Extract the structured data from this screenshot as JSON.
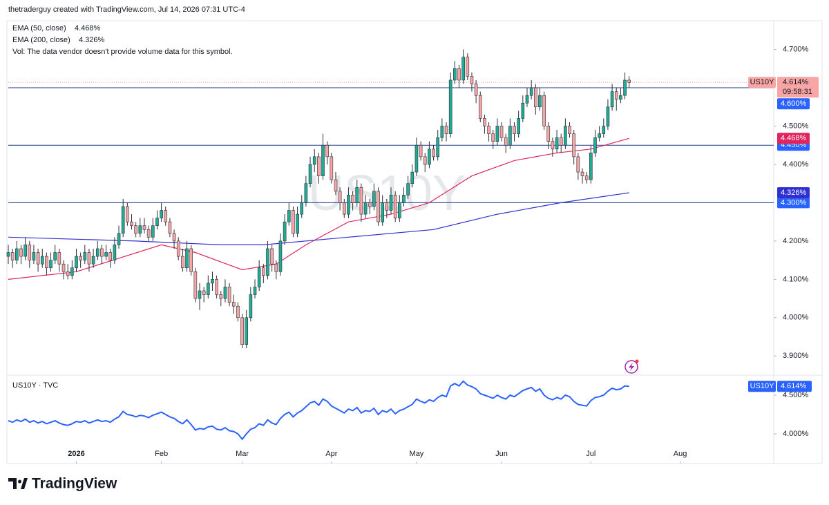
{
  "chart_data": {
    "type": "candlestick",
    "header": "thetraderguy created with TradingView.com, Jul 14, 2026 07:31 UTC-4",
    "watermark": "US10Y",
    "symbol": "US10Y",
    "volume_note": "Vol: The data vendor doesn't provide volume data for this symbol.",
    "up_color": "#22ab94",
    "down_color": "#f7a5a5",
    "wick_color": "#2a2e39",
    "candles": [
      [
        4.16,
        4.19,
        4.14,
        4.17
      ],
      [
        4.17,
        4.18,
        4.13,
        4.15
      ],
      [
        4.15,
        4.2,
        4.14,
        4.18
      ],
      [
        4.18,
        4.19,
        4.14,
        4.16
      ],
      [
        4.16,
        4.21,
        4.15,
        4.19
      ],
      [
        4.19,
        4.2,
        4.13,
        4.15
      ],
      [
        4.15,
        4.19,
        4.14,
        4.17
      ],
      [
        4.17,
        4.18,
        4.12,
        4.14
      ],
      [
        4.14,
        4.18,
        4.13,
        4.16
      ],
      [
        4.16,
        4.17,
        4.11,
        4.13
      ],
      [
        4.13,
        4.17,
        4.12,
        4.15
      ],
      [
        4.15,
        4.19,
        4.14,
        4.17
      ],
      [
        4.17,
        4.18,
        4.12,
        4.14
      ],
      [
        4.14,
        4.15,
        4.1,
        4.12
      ],
      [
        4.12,
        4.14,
        4.1,
        4.11
      ],
      [
        4.11,
        4.15,
        4.1,
        4.13
      ],
      [
        4.13,
        4.18,
        4.12,
        4.16
      ],
      [
        4.16,
        4.17,
        4.13,
        4.15
      ],
      [
        4.15,
        4.19,
        4.14,
        4.17
      ],
      [
        4.17,
        4.18,
        4.12,
        4.14
      ],
      [
        4.14,
        4.18,
        4.13,
        4.16
      ],
      [
        4.16,
        4.2,
        4.15,
        4.18
      ],
      [
        4.18,
        4.19,
        4.14,
        4.16
      ],
      [
        4.16,
        4.19,
        4.15,
        4.17
      ],
      [
        4.17,
        4.18,
        4.13,
        4.15
      ],
      [
        4.15,
        4.21,
        4.14,
        4.19
      ],
      [
        4.19,
        4.24,
        4.18,
        4.22
      ],
      [
        4.22,
        4.31,
        4.21,
        4.29
      ],
      [
        4.29,
        4.3,
        4.24,
        4.25
      ],
      [
        4.25,
        4.27,
        4.23,
        4.24
      ],
      [
        4.24,
        4.25,
        4.21,
        4.22
      ],
      [
        4.22,
        4.26,
        4.21,
        4.24
      ],
      [
        4.24,
        4.26,
        4.22,
        4.23
      ],
      [
        4.23,
        4.24,
        4.2,
        4.21
      ],
      [
        4.21,
        4.26,
        4.2,
        4.24
      ],
      [
        4.24,
        4.28,
        4.23,
        4.26
      ],
      [
        4.26,
        4.3,
        4.25,
        4.28
      ],
      [
        4.28,
        4.29,
        4.24,
        4.25
      ],
      [
        4.25,
        4.26,
        4.21,
        4.22
      ],
      [
        4.22,
        4.23,
        4.18,
        4.2
      ],
      [
        4.2,
        4.21,
        4.15,
        4.16
      ],
      [
        4.16,
        4.18,
        4.12,
        4.13
      ],
      [
        4.13,
        4.2,
        4.12,
        4.18
      ],
      [
        4.18,
        4.19,
        4.11,
        4.12
      ],
      [
        4.12,
        4.13,
        4.04,
        4.05
      ],
      [
        4.05,
        4.09,
        4.02,
        4.07
      ],
      [
        4.07,
        4.08,
        4.04,
        4.06
      ],
      [
        4.06,
        4.11,
        4.05,
        4.09
      ],
      [
        4.09,
        4.12,
        4.07,
        4.1
      ],
      [
        4.1,
        4.11,
        4.05,
        4.06
      ],
      [
        4.06,
        4.07,
        4.03,
        4.05
      ],
      [
        4.05,
        4.1,
        4.04,
        4.08
      ],
      [
        4.08,
        4.09,
        4.03,
        4.04
      ],
      [
        4.04,
        4.06,
        4.01,
        4.03
      ],
      [
        4.03,
        4.04,
        3.99,
        4.0
      ],
      [
        4.0,
        4.01,
        3.92,
        3.93
      ],
      [
        3.93,
        4.02,
        3.92,
        4.0
      ],
      [
        4.0,
        4.08,
        3.99,
        4.06
      ],
      [
        4.06,
        4.1,
        4.05,
        4.08
      ],
      [
        4.08,
        4.15,
        4.07,
        4.13
      ],
      [
        4.13,
        4.14,
        4.09,
        4.11
      ],
      [
        4.11,
        4.2,
        4.1,
        4.18
      ],
      [
        4.18,
        4.19,
        4.12,
        4.14
      ],
      [
        4.14,
        4.15,
        4.1,
        4.12
      ],
      [
        4.12,
        4.22,
        4.11,
        4.2
      ],
      [
        4.2,
        4.27,
        4.19,
        4.25
      ],
      [
        4.25,
        4.3,
        4.24,
        4.28
      ],
      [
        4.28,
        4.29,
        4.21,
        4.22
      ],
      [
        4.22,
        4.29,
        4.21,
        4.27
      ],
      [
        4.27,
        4.32,
        4.26,
        4.3
      ],
      [
        4.3,
        4.37,
        4.29,
        4.35
      ],
      [
        4.35,
        4.42,
        4.34,
        4.4
      ],
      [
        4.4,
        4.44,
        4.38,
        4.42
      ],
      [
        4.42,
        4.43,
        4.35,
        4.37
      ],
      [
        4.37,
        4.48,
        4.36,
        4.45
      ],
      [
        4.45,
        4.46,
        4.4,
        4.42
      ],
      [
        4.42,
        4.43,
        4.35,
        4.36
      ],
      [
        4.36,
        4.38,
        4.32,
        4.33
      ],
      [
        4.33,
        4.34,
        4.28,
        4.3
      ],
      [
        4.3,
        4.31,
        4.26,
        4.27
      ],
      [
        4.27,
        4.34,
        4.26,
        4.32
      ],
      [
        4.32,
        4.33,
        4.28,
        4.3
      ],
      [
        4.3,
        4.36,
        4.29,
        4.34
      ],
      [
        4.34,
        4.35,
        4.25,
        4.27
      ],
      [
        4.27,
        4.32,
        4.26,
        4.3
      ],
      [
        4.3,
        4.31,
        4.27,
        4.29
      ],
      [
        4.29,
        4.35,
        4.28,
        4.33
      ],
      [
        4.33,
        4.34,
        4.24,
        4.25
      ],
      [
        4.25,
        4.32,
        4.24,
        4.3
      ],
      [
        4.3,
        4.31,
        4.26,
        4.28
      ],
      [
        4.28,
        4.34,
        4.27,
        4.32
      ],
      [
        4.32,
        4.33,
        4.25,
        4.26
      ],
      [
        4.26,
        4.32,
        4.25,
        4.3
      ],
      [
        4.3,
        4.34,
        4.29,
        4.32
      ],
      [
        4.32,
        4.37,
        4.31,
        4.35
      ],
      [
        4.35,
        4.4,
        4.34,
        4.38
      ],
      [
        4.38,
        4.47,
        4.37,
        4.45
      ],
      [
        4.45,
        4.46,
        4.41,
        4.42
      ],
      [
        4.42,
        4.43,
        4.38,
        4.4
      ],
      [
        4.4,
        4.46,
        4.39,
        4.44
      ],
      [
        4.44,
        4.45,
        4.41,
        4.42
      ],
      [
        4.42,
        4.49,
        4.41,
        4.47
      ],
      [
        4.47,
        4.52,
        4.46,
        4.5
      ],
      [
        4.5,
        4.51,
        4.46,
        4.48
      ],
      [
        4.48,
        4.64,
        4.47,
        4.62
      ],
      [
        4.62,
        4.67,
        4.61,
        4.65
      ],
      [
        4.65,
        4.66,
        4.6,
        4.62
      ],
      [
        4.62,
        4.7,
        4.61,
        4.68
      ],
      [
        4.68,
        4.69,
        4.62,
        4.63
      ],
      [
        4.63,
        4.64,
        4.59,
        4.61
      ],
      [
        4.61,
        4.62,
        4.56,
        4.58
      ],
      [
        4.58,
        4.59,
        4.51,
        4.52
      ],
      [
        4.52,
        4.53,
        4.48,
        4.5
      ],
      [
        4.5,
        4.51,
        4.46,
        4.48
      ],
      [
        4.48,
        4.49,
        4.44,
        4.46
      ],
      [
        4.46,
        4.52,
        4.45,
        4.5
      ],
      [
        4.5,
        4.51,
        4.46,
        4.47
      ],
      [
        4.47,
        4.48,
        4.43,
        4.45
      ],
      [
        4.45,
        4.52,
        4.44,
        4.5
      ],
      [
        4.5,
        4.51,
        4.46,
        4.48
      ],
      [
        4.48,
        4.54,
        4.47,
        4.52
      ],
      [
        4.52,
        4.58,
        4.51,
        4.56
      ],
      [
        4.56,
        4.6,
        4.55,
        4.58
      ],
      [
        4.58,
        4.62,
        4.57,
        4.6
      ],
      [
        4.6,
        4.61,
        4.53,
        4.55
      ],
      [
        4.55,
        4.6,
        4.54,
        4.58
      ],
      [
        4.58,
        4.59,
        4.49,
        4.5
      ],
      [
        4.5,
        4.51,
        4.44,
        4.46
      ],
      [
        4.46,
        4.47,
        4.42,
        4.44
      ],
      [
        4.44,
        4.49,
        4.43,
        4.47
      ],
      [
        4.47,
        4.48,
        4.43,
        4.45
      ],
      [
        4.45,
        4.52,
        4.44,
        4.5
      ],
      [
        4.5,
        4.51,
        4.47,
        4.48
      ],
      [
        4.48,
        4.49,
        4.4,
        4.42
      ],
      [
        4.42,
        4.43,
        4.36,
        4.38
      ],
      [
        4.38,
        4.39,
        4.35,
        4.37
      ],
      [
        4.37,
        4.38,
        4.35,
        4.36
      ],
      [
        4.36,
        4.45,
        4.35,
        4.43
      ],
      [
        4.43,
        4.49,
        4.42,
        4.47
      ],
      [
        4.47,
        4.5,
        4.46,
        4.48
      ],
      [
        4.48,
        4.52,
        4.47,
        4.5
      ],
      [
        4.5,
        4.57,
        4.49,
        4.55
      ],
      [
        4.55,
        4.61,
        4.54,
        4.59
      ],
      [
        4.59,
        4.6,
        4.54,
        4.57
      ],
      [
        4.57,
        4.6,
        4.56,
        4.58
      ],
      [
        4.58,
        4.64,
        4.57,
        4.62
      ],
      [
        4.62,
        4.63,
        4.6,
        4.614
      ]
    ],
    "last_price_label": "4.614%",
    "countdown": "09:58:31",
    "last_color": "#f7a5a5",
    "series": [
      {
        "name": "EMA (50, close)",
        "color": "#e0245e",
        "value_label": "4.468%",
        "x": [
          0,
          16,
          36,
          44,
          55,
          63,
          70,
          80,
          90,
          99,
          109,
          119,
          129,
          137,
          146
        ],
        "values": [
          4.1,
          4.12,
          4.19,
          4.17,
          4.125,
          4.14,
          4.19,
          4.25,
          4.27,
          4.3,
          4.37,
          4.41,
          4.43,
          4.44,
          4.468
        ]
      },
      {
        "name": "EMA (200, close)",
        "color": "#3030d0",
        "value_label": "4.326%",
        "x": [
          0,
          30,
          50,
          60,
          80,
          100,
          115,
          130,
          146
        ],
        "values": [
          4.21,
          4.2,
          4.19,
          4.19,
          4.21,
          4.23,
          4.27,
          4.3,
          4.326
        ]
      }
    ],
    "hlines": [
      {
        "value": 4.6,
        "label": "4.600%"
      },
      {
        "value": 4.45,
        "label": "4.450%"
      },
      {
        "value": 4.3,
        "label": "4.300%"
      }
    ],
    "hline_color": "#2962ff",
    "xlim": [
      0,
      180
    ],
    "ylim": [
      3.85,
      4.775
    ],
    "yticks": [
      {
        "value": 3.9,
        "label": "3.900%"
      },
      {
        "value": 4.0,
        "label": "4.000%"
      },
      {
        "value": 4.1,
        "label": "4.100%"
      },
      {
        "value": 4.2,
        "label": "4.200%"
      },
      {
        "value": 4.4,
        "label": "4.400%"
      },
      {
        "value": 4.5,
        "label": "4.500%"
      },
      {
        "value": 4.7,
        "label": "4.700%"
      }
    ],
    "xticks": [
      {
        "value": 16,
        "label": "2026"
      },
      {
        "value": 36,
        "label": "Feb"
      },
      {
        "value": 55,
        "label": "Mar"
      },
      {
        "value": 76,
        "label": "Apr"
      },
      {
        "value": 96,
        "label": "May"
      },
      {
        "value": 116,
        "label": "Jun"
      },
      {
        "value": 137,
        "label": "Jul"
      },
      {
        "value": 158,
        "label": "Aug"
      }
    ],
    "overview": {
      "title": "US10Y · TVC",
      "color": "#2962ff",
      "ylim": [
        3.625,
        4.759
      ],
      "yticks": [
        {
          "value": 4.0,
          "label": "4.000%"
        },
        {
          "value": 4.5,
          "label": "4.500%"
        }
      ]
    },
    "footer": "TradingView"
  }
}
